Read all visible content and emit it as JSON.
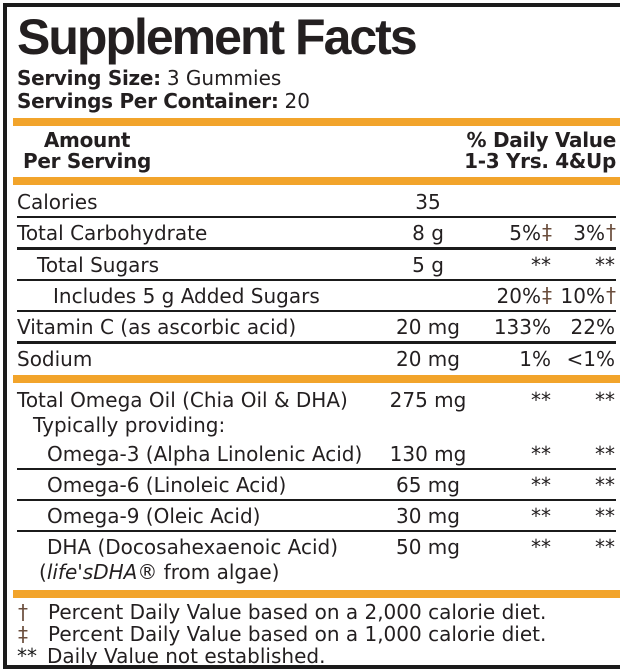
{
  "colors": {
    "accent_orange": "#F2A42B",
    "dagger_brown": "#6B4E3D",
    "ink": "#1B1B1B"
  },
  "label": {
    "title": "Supplement Facts",
    "serving_size_label": "Serving Size:",
    "serving_size_value": "3 Gummies",
    "servings_label": "Servings Per Container:",
    "servings_value": "20",
    "header": {
      "amount_line1": "Amount",
      "amount_line2": "Per Serving",
      "dv_line1": "% Daily Value",
      "dv_line2": "1-3 Yrs. 4&Up"
    },
    "rows": [
      {
        "name": "Calories",
        "amount": "35",
        "dv1": "",
        "dv1m": "",
        "dv2": "",
        "dv2m": ""
      },
      {
        "name": "Total Carbohydrate",
        "amount": "8 g",
        "dv1": "5%",
        "dv1m": "‡",
        "dv2": "3%",
        "dv2m": "†"
      },
      {
        "name": "Total Sugars",
        "amount": "5 g",
        "dv1": "**",
        "dv1m": "",
        "dv2": "**",
        "dv2m": ""
      },
      {
        "name": "Includes 5 g Added Sugars",
        "amount": "",
        "dv1": "20%",
        "dv1m": "‡",
        "dv2": "10%",
        "dv2m": "†"
      },
      {
        "name": "Vitamin C (as ascorbic acid)",
        "amount": "20 mg",
        "dv1": "133%",
        "dv1m": "",
        "dv2": "22%",
        "dv2m": ""
      },
      {
        "name": "Sodium",
        "amount": "20 mg",
        "dv1": "1%",
        "dv1m": "",
        "dv2": "<1%",
        "dv2m": ""
      },
      {
        "name": "Total Omega Oil (Chia Oil & DHA)",
        "sub": "Typically providing:",
        "amount": "275 mg",
        "dv1": "**",
        "dv1m": "",
        "dv2": "**",
        "dv2m": ""
      },
      {
        "name": "Omega-3 (Alpha Linolenic Acid)",
        "amount": "130 mg",
        "dv1": "**",
        "dv1m": "",
        "dv2": "**",
        "dv2m": ""
      },
      {
        "name": "Omega-6 (Linoleic Acid)",
        "amount": "65 mg",
        "dv1": "**",
        "dv1m": "",
        "dv2": "**",
        "dv2m": ""
      },
      {
        "name": "Omega-9 (Oleic Acid)",
        "amount": "30 mg",
        "dv1": "**",
        "dv1m": "",
        "dv2": "**",
        "dv2m": ""
      },
      {
        "name": "DHA (Docosahexaenoic Acid)",
        "sub_prefix": "(",
        "sub_italic": "life'sDHA",
        "sub_suffix": "® from algae)",
        "amount": "50 mg",
        "dv1": "**",
        "dv1m": "",
        "dv2": "**",
        "dv2m": ""
      }
    ],
    "footnotes": [
      {
        "mark": "†",
        "text": "Percent Daily Value based on a 2,000 calorie diet."
      },
      {
        "mark": "‡",
        "text": "Percent Daily Value based on a 1,000 calorie diet."
      },
      {
        "mark": "**",
        "text": "Daily Value not established."
      }
    ]
  }
}
